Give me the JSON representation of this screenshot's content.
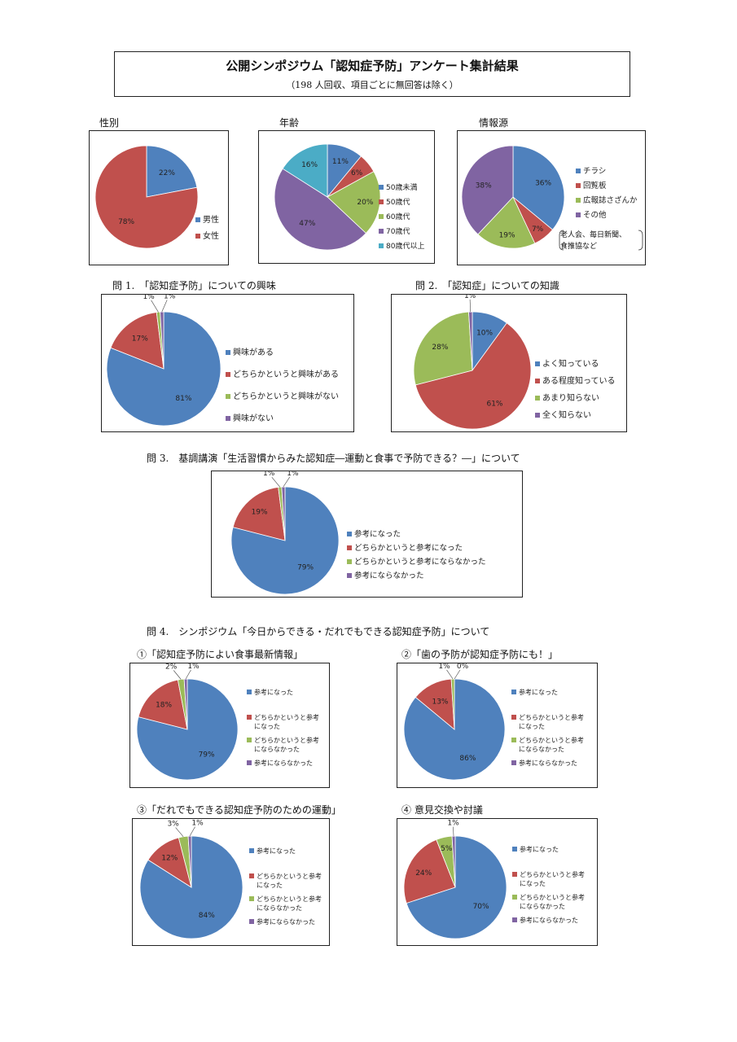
{
  "header": {
    "title": "公開シンポジウム「認知症予防」アンケート集計結果",
    "subtitle": "（198 人回収、項目ごとに無回答は除く）"
  },
  "sections": {
    "gender": "性別",
    "age": "年齢",
    "source": "情報源",
    "q1": "問 1.　「認知症予防」についての興味",
    "q2": "問 2.　「認知症」についての知識",
    "q3": "問 3.　基調講演「生活習慣からみた認知症―運動と食事で予防できる？―」について",
    "q4": "問 4.　シンポジウム「今日からできる・だれでもできる認知症予防」について",
    "q4_1": "①「認知症予防によい食事最新情報」",
    "q4_2": "②「歯の予防が認知症予防にも！」",
    "q4_3": "③「だれでもできる認知症予防のための運動」",
    "q4_4": "④ 意見交換や討議"
  },
  "source_note": [
    "老人会、毎日新聞、",
    "食推協など"
  ],
  "colors": {
    "blue": "#4F81BD",
    "red": "#C0504D",
    "green": "#9BBB59",
    "purple": "#8064A2",
    "cyan": "#4BACC6"
  },
  "chart_data": [
    {
      "id": "gender",
      "type": "pie",
      "labels": [
        "男性",
        "女性"
      ],
      "values": [
        22,
        78
      ],
      "percent_labels": [
        "22%",
        "78%"
      ]
    },
    {
      "id": "age",
      "type": "pie",
      "labels": [
        "50歳未満",
        "50歳代",
        "60歳代",
        "70歳代",
        "80歳代以上"
      ],
      "values": [
        11,
        6,
        20,
        47,
        16
      ],
      "percent_labels": [
        "11%",
        "6%",
        "20%",
        "47%",
        "16%"
      ]
    },
    {
      "id": "source",
      "type": "pie",
      "labels": [
        "チラシ",
        "回覧板",
        "広報誌さざんか",
        "その他"
      ],
      "values": [
        36,
        7,
        19,
        38
      ],
      "percent_labels": [
        "36%",
        "7%",
        "19%",
        "38%"
      ]
    },
    {
      "id": "q1",
      "type": "pie",
      "labels": [
        "興味がある",
        "どちらかというと興味がある",
        "どちらかというと興味がない",
        "興味がない"
      ],
      "values": [
        81,
        17,
        1,
        1
      ],
      "percent_labels": [
        "81%",
        "17%",
        "1%",
        "1%"
      ]
    },
    {
      "id": "q2",
      "type": "pie",
      "labels": [
        "よく知っている",
        "ある程度知っている",
        "あまり知らない",
        "全く知らない"
      ],
      "values": [
        10,
        61,
        28,
        1
      ],
      "percent_labels": [
        "10%",
        "61%",
        "28%",
        "1%"
      ]
    },
    {
      "id": "q3",
      "type": "pie",
      "labels": [
        "参考になった",
        "どちらかというと参考になった",
        "どちらかというと参考にならなかった",
        "参考にならなかった"
      ],
      "values": [
        79,
        19,
        1,
        1
      ],
      "percent_labels": [
        "79%",
        "19%",
        "1%",
        "1%"
      ]
    },
    {
      "id": "q4_1",
      "type": "pie",
      "labels": [
        "参考になった",
        "どちらかというと参考になった",
        "どちらかというと参考にならなかった",
        "参考にならなかった"
      ],
      "values": [
        79,
        18,
        2,
        1
      ],
      "percent_labels": [
        "79%",
        "18%",
        "2%",
        "1%"
      ]
    },
    {
      "id": "q4_2",
      "type": "pie",
      "labels": [
        "参考になった",
        "どちらかというと参考になった",
        "どちらかというと参考にならなかった",
        "参考にならなかった"
      ],
      "values": [
        86,
        13,
        1,
        0
      ],
      "percent_labels": [
        "86%",
        "13%",
        "1%",
        "0%"
      ]
    },
    {
      "id": "q4_3",
      "type": "pie",
      "labels": [
        "参考になった",
        "どちらかというと参考になった",
        "どちらかというと参考にならなかった",
        "参考にならなかった"
      ],
      "values": [
        84,
        12,
        3,
        1
      ],
      "percent_labels": [
        "84%",
        "12%",
        "3%",
        "1%"
      ]
    },
    {
      "id": "q4_4",
      "type": "pie",
      "labels": [
        "参考になった",
        "どちらかというと参考になった",
        "どちらかというと参考にならなかった",
        "参考にならなかった"
      ],
      "values": [
        70,
        24,
        5,
        1
      ],
      "percent_labels": [
        "70%",
        "24%",
        "5%",
        "1%"
      ]
    }
  ]
}
